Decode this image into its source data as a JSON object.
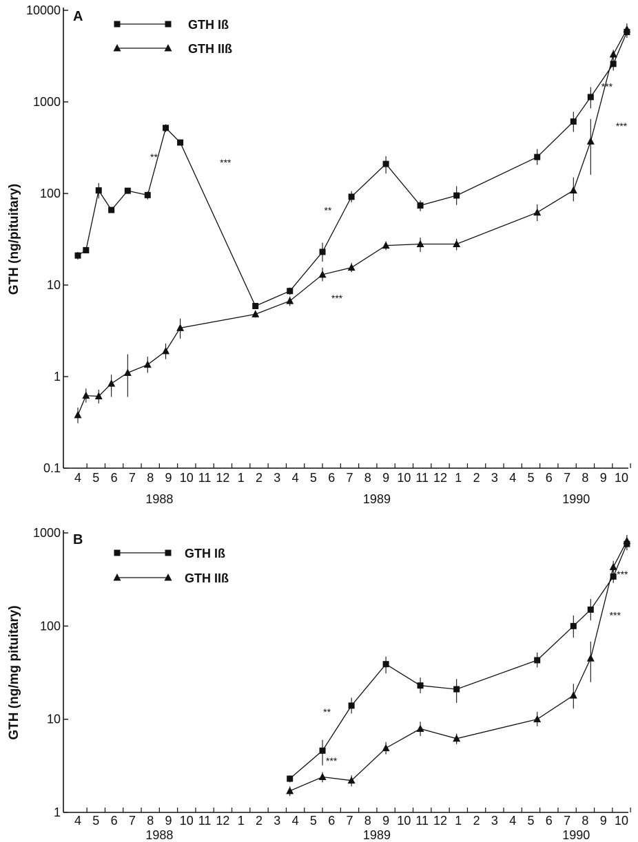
{
  "chart_data": [
    {
      "panel": "A",
      "type": "line",
      "yscale": "log",
      "ylim": [
        0.1,
        10000
      ],
      "ylabel": "GTH (ng/pituitary)",
      "yticks": [
        0.1,
        1,
        10,
        100,
        1000,
        10000
      ],
      "ytick_labels": [
        "0.1",
        "1",
        "10",
        "100",
        "1000",
        "10000"
      ],
      "x_month_labels": [
        "4",
        "5",
        "6",
        "7",
        "8",
        "9",
        "10",
        "11",
        "12",
        "1",
        "2",
        "3",
        "4",
        "5",
        "6",
        "7",
        "8",
        "9",
        "10",
        "11",
        "12",
        "1",
        "2",
        "3",
        "4",
        "5",
        "6",
        "7",
        "8",
        "9",
        "10"
      ],
      "x_year_labels": [
        {
          "label": "1988",
          "at_month_index": 4.5
        },
        {
          "label": "1989",
          "at_month_index": 16.5
        },
        {
          "label": "1990",
          "at_month_index": 27.5
        }
      ],
      "legend": [
        {
          "name": "GTH Iß",
          "marker": "square"
        },
        {
          "name": "GTH IIß",
          "marker": "triangle"
        }
      ],
      "legend_position": "top-left",
      "series": [
        {
          "name": "GTH Iß",
          "marker": "square",
          "points": [
            {
              "x": 0.0,
              "y": 21,
              "lo": 19,
              "hi": 23
            },
            {
              "x": 0.45,
              "y": 24
            },
            {
              "x": 1.15,
              "y": 108,
              "lo": 88,
              "hi": 130
            },
            {
              "x": 1.85,
              "y": 66
            },
            {
              "x": 2.75,
              "y": 107
            },
            {
              "x": 3.85,
              "y": 96,
              "lo": 86,
              "hi": 105
            },
            {
              "x": 4.85,
              "y": 520,
              "lo": 470,
              "hi": 570
            },
            {
              "x": 5.65,
              "y": 360
            },
            {
              "x": 9.8,
              "y": 5.9
            },
            {
              "x": 11.7,
              "y": 8.6,
              "lo": 7.8,
              "hi": 9.4
            },
            {
              "x": 13.5,
              "y": 23,
              "lo": 18,
              "hi": 29
            },
            {
              "x": 15.1,
              "y": 92,
              "lo": 80,
              "hi": 106
            },
            {
              "x": 17.0,
              "y": 210,
              "lo": 165,
              "hi": 255
            },
            {
              "x": 18.9,
              "y": 74,
              "lo": 64,
              "hi": 84
            },
            {
              "x": 20.9,
              "y": 95,
              "lo": 75,
              "hi": 120
            },
            {
              "x": 25.35,
              "y": 250,
              "lo": 205,
              "hi": 305
            },
            {
              "x": 27.35,
              "y": 610,
              "lo": 470,
              "hi": 780
            },
            {
              "x": 28.3,
              "y": 1130,
              "lo": 850,
              "hi": 1450
            },
            {
              "x": 29.55,
              "y": 2600,
              "lo": 2200,
              "hi": 3000
            },
            {
              "x": 30.3,
              "y": 5800,
              "lo": 5000,
              "hi": 6700
            }
          ]
        },
        {
          "name": "GTH IIß",
          "marker": "triangle",
          "points": [
            {
              "x": 0.0,
              "y": 0.38,
              "lo": 0.31,
              "hi": 0.46
            },
            {
              "x": 0.45,
              "y": 0.62,
              "lo": 0.52,
              "hi": 0.74
            },
            {
              "x": 1.15,
              "y": 0.61,
              "lo": 0.51,
              "hi": 0.72
            },
            {
              "x": 1.85,
              "y": 0.84,
              "lo": 0.6,
              "hi": 1.05
            },
            {
              "x": 2.75,
              "y": 1.1,
              "lo": 0.6,
              "hi": 1.75
            },
            {
              "x": 3.85,
              "y": 1.35,
              "lo": 1.1,
              "hi": 1.65
            },
            {
              "x": 4.85,
              "y": 1.9,
              "lo": 1.55,
              "hi": 2.3
            },
            {
              "x": 5.65,
              "y": 3.4,
              "lo": 2.6,
              "hi": 4.3
            },
            {
              "x": 9.8,
              "y": 4.8,
              "lo": 4.4,
              "hi": 5.2
            },
            {
              "x": 11.7,
              "y": 6.7,
              "lo": 5.9,
              "hi": 7.5
            },
            {
              "x": 13.5,
              "y": 13,
              "lo": 11,
              "hi": 15.5
            },
            {
              "x": 15.1,
              "y": 15.5,
              "lo": 13.8,
              "hi": 17.5
            },
            {
              "x": 17.0,
              "y": 27,
              "lo": 24,
              "hi": 30
            },
            {
              "x": 18.9,
              "y": 28,
              "lo": 23,
              "hi": 33
            },
            {
              "x": 20.9,
              "y": 28,
              "lo": 24,
              "hi": 32
            },
            {
              "x": 25.35,
              "y": 62,
              "lo": 50,
              "hi": 76
            },
            {
              "x": 27.35,
              "y": 108,
              "lo": 82,
              "hi": 150
            },
            {
              "x": 28.3,
              "y": 370,
              "lo": 160,
              "hi": 650
            },
            {
              "x": 29.55,
              "y": 3300,
              "lo": 2900,
              "hi": 3700
            },
            {
              "x": 30.3,
              "y": 6200,
              "lo": 5300,
              "hi": 7200
            }
          ]
        }
      ],
      "annotations": [
        {
          "text": "**",
          "x": 4.2,
          "y": 230
        },
        {
          "text": "***",
          "x": 8.15,
          "y": 200
        },
        {
          "text": "**",
          "x": 13.8,
          "y": 60
        },
        {
          "text": "***",
          "x": 14.3,
          "y": 6.6
        },
        {
          "text": "***",
          "x": 29.2,
          "y": 1350
        },
        {
          "text": "***",
          "x": 30.0,
          "y": 500
        }
      ]
    },
    {
      "panel": "B",
      "type": "line",
      "yscale": "log",
      "ylim": [
        1,
        1000
      ],
      "ylabel": "GTH (ng/mg pituitary)",
      "yticks": [
        1,
        10,
        100,
        1000
      ],
      "ytick_labels": [
        "1",
        "10",
        "100",
        "1000"
      ],
      "x_month_labels": [
        "4",
        "5",
        "6",
        "7",
        "8",
        "9",
        "10",
        "11",
        "12",
        "1",
        "2",
        "3",
        "4",
        "5",
        "6",
        "7",
        "8",
        "9",
        "10",
        "11",
        "12",
        "1",
        "2",
        "3",
        "4",
        "5",
        "6",
        "7",
        "8",
        "9",
        "10"
      ],
      "x_year_labels": [
        {
          "label": "1988",
          "at_month_index": 4.5
        },
        {
          "label": "1989",
          "at_month_index": 16.5
        },
        {
          "label": "1990",
          "at_month_index": 27.5
        }
      ],
      "legend": [
        {
          "name": "GTH Iß",
          "marker": "square"
        },
        {
          "name": "GTH IIß",
          "marker": "triangle"
        }
      ],
      "legend_position": "top-left",
      "series": [
        {
          "name": "GTH Iß",
          "marker": "square",
          "points": [
            {
              "x": 11.7,
              "y": 2.3,
              "lo": 2.1,
              "hi": 2.5
            },
            {
              "x": 13.5,
              "y": 4.6,
              "lo": 3.2,
              "hi": 6.0
            },
            {
              "x": 15.1,
              "y": 14,
              "lo": 11.5,
              "hi": 17
            },
            {
              "x": 17.0,
              "y": 39,
              "lo": 31,
              "hi": 47
            },
            {
              "x": 18.9,
              "y": 23,
              "lo": 19,
              "hi": 28
            },
            {
              "x": 20.9,
              "y": 21,
              "lo": 15,
              "hi": 27
            },
            {
              "x": 25.35,
              "y": 43,
              "lo": 36,
              "hi": 52
            },
            {
              "x": 27.35,
              "y": 100,
              "lo": 75,
              "hi": 130
            },
            {
              "x": 28.3,
              "y": 150,
              "lo": 115,
              "hi": 195
            },
            {
              "x": 29.55,
              "y": 340,
              "lo": 290,
              "hi": 400
            },
            {
              "x": 30.3,
              "y": 760,
              "lo": 650,
              "hi": 880
            }
          ]
        },
        {
          "name": "GTH IIß",
          "marker": "triangle",
          "points": [
            {
              "x": 11.7,
              "y": 1.7,
              "lo": 1.5,
              "hi": 1.9
            },
            {
              "x": 13.5,
              "y": 2.4,
              "lo": 2.1,
              "hi": 2.7
            },
            {
              "x": 15.1,
              "y": 2.2,
              "lo": 1.9,
              "hi": 2.5
            },
            {
              "x": 17.0,
              "y": 4.9,
              "lo": 4.2,
              "hi": 5.7
            },
            {
              "x": 18.9,
              "y": 7.9,
              "lo": 6.6,
              "hi": 9.4
            },
            {
              "x": 20.9,
              "y": 6.2,
              "lo": 5.4,
              "hi": 7.0
            },
            {
              "x": 25.35,
              "y": 10,
              "lo": 8.4,
              "hi": 12
            },
            {
              "x": 27.35,
              "y": 18,
              "lo": 13,
              "hi": 24
            },
            {
              "x": 28.3,
              "y": 45,
              "lo": 25,
              "hi": 68
            },
            {
              "x": 29.55,
              "y": 430,
              "lo": 370,
              "hi": 500
            },
            {
              "x": 30.3,
              "y": 820,
              "lo": 700,
              "hi": 950
            }
          ]
        }
      ],
      "annotations": [
        {
          "text": "**",
          "x": 13.75,
          "y": 11
        },
        {
          "text": "***",
          "x": 14.0,
          "y": 3.3
        },
        {
          "text": "***",
          "x": 30.05,
          "y": 330
        },
        {
          "text": "***",
          "x": 29.65,
          "y": 120
        }
      ]
    }
  ]
}
